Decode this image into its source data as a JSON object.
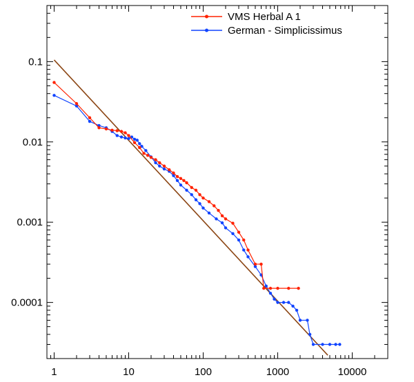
{
  "chart_data": {
    "type": "line",
    "title": "",
    "xlabel": "",
    "ylabel": "",
    "xscale": "log",
    "yscale": "log",
    "xlim": [
      0.8,
      30000
    ],
    "ylim": [
      2e-05,
      0.5
    ],
    "x_ticks": [
      {
        "value": 1,
        "label": "1"
      },
      {
        "value": 10,
        "label": "10"
      },
      {
        "value": 100,
        "label": "100"
      },
      {
        "value": 1000,
        "label": "1000"
      },
      {
        "value": 10000,
        "label": "10000"
      }
    ],
    "y_ticks": [
      {
        "value": 0.1,
        "label": "0.1"
      },
      {
        "value": 0.01,
        "label": "0.01"
      },
      {
        "value": 0.001,
        "label": "0.001"
      },
      {
        "value": 0.0001,
        "label": "0.0001"
      }
    ],
    "grid": false,
    "legend_position": "top-right",
    "series": [
      {
        "name": "VMS Herbal A 1",
        "color": "#ff2200",
        "marker": "circle",
        "points": [
          [
            1,
            0.055
          ],
          [
            2,
            0.03
          ],
          [
            3,
            0.02
          ],
          [
            4,
            0.015
          ],
          [
            5,
            0.0145
          ],
          [
            6,
            0.014
          ],
          [
            7,
            0.0138
          ],
          [
            8,
            0.0135
          ],
          [
            9,
            0.013
          ],
          [
            10,
            0.012
          ],
          [
            12,
            0.0098
          ],
          [
            14,
            0.0085
          ],
          [
            16,
            0.0072
          ],
          [
            18,
            0.0068
          ],
          [
            20,
            0.0064
          ],
          [
            23,
            0.006
          ],
          [
            26,
            0.0055
          ],
          [
            30,
            0.005
          ],
          [
            35,
            0.0045
          ],
          [
            40,
            0.0041
          ],
          [
            45,
            0.0037
          ],
          [
            50,
            0.0035
          ],
          [
            55,
            0.0033
          ],
          [
            60,
            0.0031
          ],
          [
            70,
            0.0027
          ],
          [
            80,
            0.0025
          ],
          [
            90,
            0.0022
          ],
          [
            100,
            0.002
          ],
          [
            120,
            0.0018
          ],
          [
            140,
            0.0016
          ],
          [
            160,
            0.0014
          ],
          [
            180,
            0.0012
          ],
          [
            200,
            0.0011
          ],
          [
            250,
            0.00097
          ],
          [
            300,
            0.00075
          ],
          [
            350,
            0.0006
          ],
          [
            400,
            0.00045
          ],
          [
            500,
            0.0003
          ],
          [
            600,
            0.0003
          ],
          [
            650,
            0.00015
          ],
          [
            800,
            0.00015
          ],
          [
            1000,
            0.00015
          ],
          [
            1400,
            0.00015
          ],
          [
            1900,
            0.00015
          ]
        ]
      },
      {
        "name": "German - Simplicissimus",
        "color": "#1144ff",
        "marker": "circle",
        "points": [
          [
            1,
            0.038
          ],
          [
            2,
            0.028
          ],
          [
            3,
            0.018
          ],
          [
            4,
            0.016
          ],
          [
            5,
            0.015
          ],
          [
            6,
            0.0135
          ],
          [
            7,
            0.012
          ],
          [
            8,
            0.0115
          ],
          [
            9,
            0.0112
          ],
          [
            10,
            0.011
          ],
          [
            11,
            0.0115
          ],
          [
            12,
            0.0108
          ],
          [
            13,
            0.0105
          ],
          [
            14,
            0.0095
          ],
          [
            15,
            0.0088
          ],
          [
            17,
            0.0078
          ],
          [
            20,
            0.0065
          ],
          [
            23,
            0.0055
          ],
          [
            26,
            0.005
          ],
          [
            30,
            0.0046
          ],
          [
            35,
            0.0043
          ],
          [
            40,
            0.0038
          ],
          [
            45,
            0.0033
          ],
          [
            50,
            0.0029
          ],
          [
            60,
            0.0025
          ],
          [
            70,
            0.0022
          ],
          [
            80,
            0.0019
          ],
          [
            90,
            0.0017
          ],
          [
            100,
            0.0015
          ],
          [
            120,
            0.0013
          ],
          [
            150,
            0.0011
          ],
          [
            180,
            0.00098
          ],
          [
            200,
            0.00085
          ],
          [
            250,
            0.00072
          ],
          [
            300,
            0.0006
          ],
          [
            350,
            0.00045
          ],
          [
            400,
            0.00037
          ],
          [
            500,
            0.00028
          ],
          [
            600,
            0.00022
          ],
          [
            700,
            0.00016
          ],
          [
            800,
            0.00013
          ],
          [
            900,
            0.00011
          ],
          [
            1000,
            0.0001
          ],
          [
            1200,
            0.0001
          ],
          [
            1400,
            0.0001
          ],
          [
            1600,
            9e-05
          ],
          [
            1800,
            8e-05
          ],
          [
            2000,
            6e-05
          ],
          [
            2500,
            6e-05
          ],
          [
            2700,
            4e-05
          ],
          [
            3000,
            3e-05
          ],
          [
            4000,
            3e-05
          ],
          [
            5000,
            3e-05
          ],
          [
            6000,
            3e-05
          ],
          [
            6800,
            3e-05
          ]
        ]
      },
      {
        "name": "",
        "color": "#8b4513",
        "marker": "none",
        "points": [
          [
            1,
            0.105
          ],
          [
            4700,
            2.2e-05
          ]
        ]
      }
    ]
  }
}
